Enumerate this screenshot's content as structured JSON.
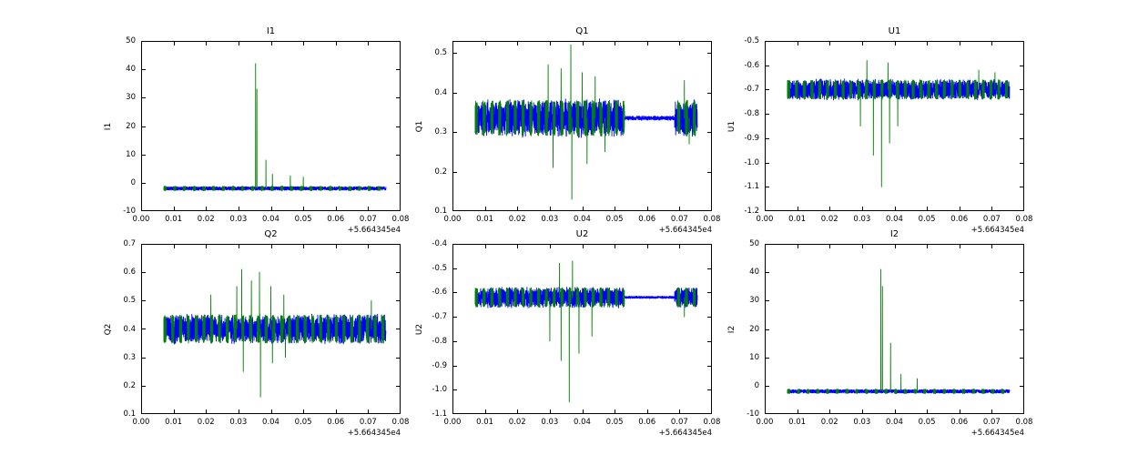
{
  "figure": {
    "background": "#ffffff",
    "axis_color": "#000000",
    "line_colors": {
      "primary": "#0000ff",
      "secondary": "#008000"
    },
    "x_offset_text": "+5.664345e4"
  },
  "chart_data": [
    {
      "type": "line",
      "title": "I1",
      "ylabel": "I1",
      "xlim": [
        0,
        0.08
      ],
      "ylim": [
        -10,
        50
      ],
      "xticks": [
        0,
        0.01,
        0.02,
        0.03,
        0.04,
        0.05,
        0.06,
        0.07,
        0.08
      ],
      "xtick_labels": [
        "0.00",
        "0.01",
        "0.02",
        "0.03",
        "0.04",
        "0.05",
        "0.06",
        "0.07",
        "0.08"
      ],
      "yticks": [
        -10,
        0,
        10,
        20,
        30,
        40,
        50
      ],
      "ytick_labels": [
        "-10",
        "0",
        "10",
        "20",
        "30",
        "40",
        "50"
      ],
      "x_offset": "+5.664345e4",
      "x_data_range": [
        0.007,
        0.0755
      ],
      "series": [
        {
          "name": "line1",
          "color": "#0000ff",
          "profile": "flat",
          "base": -2,
          "noise": 0.6,
          "seed": 11
        },
        {
          "name": "line2",
          "color": "#008000",
          "profile": "flat-bursts",
          "base": -2,
          "noise": 0.8,
          "burst_period": 0.003,
          "burst_duty": 0.25,
          "seed": 12,
          "spikes": [
            {
              "x": 0.0353,
              "y": 42
            },
            {
              "x": 0.0357,
              "y": 33
            },
            {
              "x": 0.0385,
              "y": 8
            },
            {
              "x": 0.0405,
              "y": 3
            },
            {
              "x": 0.046,
              "y": 2.5
            },
            {
              "x": 0.05,
              "y": 2
            }
          ]
        }
      ]
    },
    {
      "type": "line",
      "title": "Q1",
      "ylabel": "Q1",
      "xlim": [
        0,
        0.08
      ],
      "ylim": [
        0.1,
        0.53
      ],
      "xticks": [
        0,
        0.01,
        0.02,
        0.03,
        0.04,
        0.05,
        0.06,
        0.07,
        0.08
      ],
      "xtick_labels": [
        "0.00",
        "0.01",
        "0.02",
        "0.03",
        "0.04",
        "0.05",
        "0.06",
        "0.07",
        "0.08"
      ],
      "yticks": [
        0.1,
        0.2,
        0.3,
        0.4,
        0.5
      ],
      "ytick_labels": [
        "0.1",
        "0.2",
        "0.3",
        "0.4",
        "0.5"
      ],
      "x_offset": "+5.664345e4",
      "x_data_range": [
        0.007,
        0.0755
      ],
      "series": [
        {
          "name": "line1",
          "color": "#0000ff",
          "profile": "band",
          "center": 0.335,
          "halfwidth": 0.05,
          "segments": [
            [
              0.007,
              0.053
            ],
            [
              0.0685,
              0.0755
            ]
          ],
          "thin_scale": 0.12,
          "seed": 21
        },
        {
          "name": "line2",
          "color": "#008000",
          "profile": "band-bursts",
          "center": 0.335,
          "halfwidth": 0.045,
          "segments": [
            [
              0.007,
              0.053
            ],
            [
              0.0685,
              0.0755
            ]
          ],
          "burst_period": 0.0024,
          "burst_duty": 0.3,
          "seed": 22,
          "spikes": [
            {
              "x": 0.0295,
              "y": 0.47
            },
            {
              "x": 0.031,
              "y": 0.21
            },
            {
              "x": 0.0335,
              "y": 0.46
            },
            {
              "x": 0.0365,
              "y": 0.52
            },
            {
              "x": 0.0368,
              "y": 0.13
            },
            {
              "x": 0.04,
              "y": 0.45
            },
            {
              "x": 0.0415,
              "y": 0.22
            },
            {
              "x": 0.044,
              "y": 0.44
            },
            {
              "x": 0.047,
              "y": 0.25
            },
            {
              "x": 0.0715,
              "y": 0.43
            },
            {
              "x": 0.073,
              "y": 0.27
            }
          ]
        }
      ]
    },
    {
      "type": "line",
      "title": "U1",
      "ylabel": "U1",
      "xlim": [
        0,
        0.08
      ],
      "ylim": [
        -1.2,
        -0.5
      ],
      "xticks": [
        0,
        0.01,
        0.02,
        0.03,
        0.04,
        0.05,
        0.06,
        0.07,
        0.08
      ],
      "xtick_labels": [
        "0.00",
        "0.01",
        "0.02",
        "0.03",
        "0.04",
        "0.05",
        "0.06",
        "0.07",
        "0.08"
      ],
      "yticks": [
        -1.2,
        -1.1,
        -1.0,
        -0.9,
        -0.8,
        -0.7,
        -0.6,
        -0.5
      ],
      "ytick_labels": [
        "-1.2",
        "-1.1",
        "-1.0",
        "-0.9",
        "-0.8",
        "-0.7",
        "-0.6",
        "-0.5"
      ],
      "x_offset": "+5.664345e4",
      "x_data_range": [
        0.007,
        0.0755
      ],
      "series": [
        {
          "name": "line1",
          "color": "#0000ff",
          "profile": "band",
          "center": -0.7,
          "halfwidth": 0.045,
          "segments": [
            [
              0.007,
              0.0755
            ]
          ],
          "thin_scale": 1,
          "seed": 31
        },
        {
          "name": "line2",
          "color": "#008000",
          "profile": "band-bursts",
          "center": -0.7,
          "halfwidth": 0.04,
          "segments": [
            [
              0.007,
              0.0755
            ]
          ],
          "burst_period": 0.0024,
          "burst_duty": 0.3,
          "seed": 32,
          "spikes": [
            {
              "x": 0.0295,
              "y": -0.85
            },
            {
              "x": 0.0315,
              "y": -0.58
            },
            {
              "x": 0.0335,
              "y": -0.97
            },
            {
              "x": 0.036,
              "y": -1.1
            },
            {
              "x": 0.038,
              "y": -0.59
            },
            {
              "x": 0.0385,
              "y": -0.92
            },
            {
              "x": 0.041,
              "y": -0.85
            },
            {
              "x": 0.066,
              "y": -0.62
            },
            {
              "x": 0.071,
              "y": -0.63
            }
          ]
        }
      ]
    },
    {
      "type": "line",
      "title": "Q2",
      "ylabel": "Q2",
      "xlim": [
        0,
        0.08
      ],
      "ylim": [
        0.1,
        0.7
      ],
      "xticks": [
        0,
        0.01,
        0.02,
        0.03,
        0.04,
        0.05,
        0.06,
        0.07,
        0.08
      ],
      "xtick_labels": [
        "0.00",
        "0.01",
        "0.02",
        "0.03",
        "0.04",
        "0.05",
        "0.06",
        "0.07",
        "0.08"
      ],
      "yticks": [
        0.1,
        0.2,
        0.3,
        0.4,
        0.5,
        0.6,
        0.7
      ],
      "ytick_labels": [
        "0.1",
        "0.2",
        "0.3",
        "0.4",
        "0.5",
        "0.6",
        "0.7"
      ],
      "x_offset": "+5.664345e4",
      "x_data_range": [
        0.007,
        0.0755
      ],
      "series": [
        {
          "name": "line1",
          "color": "#0000ff",
          "profile": "band",
          "center": 0.4,
          "halfwidth": 0.055,
          "segments": [
            [
              0.007,
              0.0755
            ]
          ],
          "thin_scale": 1,
          "seed": 41
        },
        {
          "name": "line2",
          "color": "#008000",
          "profile": "band-bursts",
          "center": 0.4,
          "halfwidth": 0.05,
          "segments": [
            [
              0.007,
              0.0755
            ]
          ],
          "burst_period": 0.0024,
          "burst_duty": 0.3,
          "seed": 42,
          "spikes": [
            {
              "x": 0.0215,
              "y": 0.52
            },
            {
              "x": 0.0295,
              "y": 0.55
            },
            {
              "x": 0.031,
              "y": 0.61
            },
            {
              "x": 0.0315,
              "y": 0.25
            },
            {
              "x": 0.034,
              "y": 0.57
            },
            {
              "x": 0.0365,
              "y": 0.6
            },
            {
              "x": 0.0368,
              "y": 0.16
            },
            {
              "x": 0.04,
              "y": 0.55
            },
            {
              "x": 0.0405,
              "y": 0.28
            },
            {
              "x": 0.044,
              "y": 0.52
            },
            {
              "x": 0.0445,
              "y": 0.3
            },
            {
              "x": 0.071,
              "y": 0.5
            }
          ]
        }
      ]
    },
    {
      "type": "line",
      "title": "U2",
      "ylabel": "U2",
      "xlim": [
        0,
        0.08
      ],
      "ylim": [
        -1.1,
        -0.4
      ],
      "xticks": [
        0,
        0.01,
        0.02,
        0.03,
        0.04,
        0.05,
        0.06,
        0.07,
        0.08
      ],
      "xtick_labels": [
        "0.00",
        "0.01",
        "0.02",
        "0.03",
        "0.04",
        "0.05",
        "0.06",
        "0.07",
        "0.08"
      ],
      "yticks": [
        -1.1,
        -1.0,
        -0.9,
        -0.8,
        -0.7,
        -0.6,
        -0.5,
        -0.4
      ],
      "ytick_labels": [
        "-1.1",
        "-1.0",
        "-0.9",
        "-0.8",
        "-0.7",
        "-0.6",
        "-0.5",
        "-0.4"
      ],
      "x_offset": "+5.664345e4",
      "x_data_range": [
        0.007,
        0.0755
      ],
      "series": [
        {
          "name": "line1",
          "color": "#0000ff",
          "profile": "band",
          "center": -0.62,
          "halfwidth": 0.045,
          "segments": [
            [
              0.007,
              0.053
            ],
            [
              0.0685,
              0.0755
            ]
          ],
          "thin_scale": 0.12,
          "seed": 51
        },
        {
          "name": "line2",
          "color": "#008000",
          "profile": "band-bursts",
          "center": -0.62,
          "halfwidth": 0.04,
          "segments": [
            [
              0.007,
              0.053
            ],
            [
              0.0685,
              0.0755
            ]
          ],
          "burst_period": 0.0024,
          "burst_duty": 0.3,
          "seed": 52,
          "spikes": [
            {
              "x": 0.03,
              "y": -0.8
            },
            {
              "x": 0.033,
              "y": -0.48
            },
            {
              "x": 0.0335,
              "y": -0.88
            },
            {
              "x": 0.036,
              "y": -1.05
            },
            {
              "x": 0.037,
              "y": -0.47
            },
            {
              "x": 0.039,
              "y": -0.85
            },
            {
              "x": 0.043,
              "y": -0.78
            },
            {
              "x": 0.0715,
              "y": -0.7
            }
          ]
        }
      ]
    },
    {
      "type": "line",
      "title": "I2",
      "ylabel": "I2",
      "xlim": [
        0,
        0.08
      ],
      "ylim": [
        -10,
        50
      ],
      "xticks": [
        0,
        0.01,
        0.02,
        0.03,
        0.04,
        0.05,
        0.06,
        0.07,
        0.08
      ],
      "xtick_labels": [
        "0.00",
        "0.01",
        "0.02",
        "0.03",
        "0.04",
        "0.05",
        "0.06",
        "0.07",
        "0.08"
      ],
      "yticks": [
        -10,
        0,
        10,
        20,
        30,
        40,
        50
      ],
      "ytick_labels": [
        "-10",
        "0",
        "10",
        "20",
        "30",
        "40",
        "50"
      ],
      "x_offset": "+5.664345e4",
      "x_data_range": [
        0.007,
        0.0755
      ],
      "series": [
        {
          "name": "line1",
          "color": "#0000ff",
          "profile": "flat",
          "base": -2,
          "noise": 0.6,
          "seed": 61
        },
        {
          "name": "line2",
          "color": "#008000",
          "profile": "flat-bursts",
          "base": -2,
          "noise": 0.8,
          "burst_period": 0.003,
          "burst_duty": 0.25,
          "seed": 62,
          "spikes": [
            {
              "x": 0.0358,
              "y": 41
            },
            {
              "x": 0.0363,
              "y": 35
            },
            {
              "x": 0.0388,
              "y": 15
            },
            {
              "x": 0.042,
              "y": 4
            },
            {
              "x": 0.047,
              "y": 2.5
            }
          ]
        }
      ]
    }
  ]
}
